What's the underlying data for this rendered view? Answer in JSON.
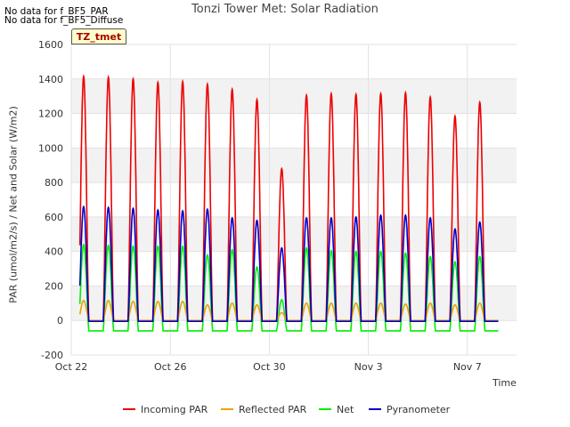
{
  "notes": [
    "No data for f_BF5_PAR",
    "No data for f_BF5_Diffuse"
  ],
  "badge": "TZ_tmet",
  "chart_data": {
    "type": "line",
    "title": "Tonzi Tower Met: Solar Radiation",
    "xlabel": "Time",
    "ylabel": "PAR (umol/m2/s) / Net and Solar (W/m2)",
    "ylim": [
      -200,
      1600
    ],
    "yticks": [
      -200,
      0,
      200,
      400,
      600,
      800,
      1000,
      1200,
      1400,
      1600
    ],
    "xlim": [
      0,
      17.5
    ],
    "xticks": [
      {
        "day": 0,
        "label": "Oct 22"
      },
      {
        "day": 4,
        "label": "Oct 26"
      },
      {
        "day": 8,
        "label": "Oct 30"
      },
      {
        "day": 12,
        "label": "Nov 3"
      },
      {
        "day": 16,
        "label": "Nov 7"
      }
    ],
    "grid": true,
    "legend_position": "bottom",
    "days": [
      {
        "day": 0,
        "par": 1415,
        "refl": 115,
        "net": 440,
        "pyr": 660
      },
      {
        "day": 1,
        "par": 1410,
        "refl": 115,
        "net": 435,
        "pyr": 655
      },
      {
        "day": 2,
        "par": 1400,
        "refl": 110,
        "net": 430,
        "pyr": 650
      },
      {
        "day": 3,
        "par": 1380,
        "refl": 110,
        "net": 430,
        "pyr": 640
      },
      {
        "day": 4,
        "par": 1385,
        "refl": 110,
        "net": 430,
        "pyr": 635
      },
      {
        "day": 5,
        "par": 1370,
        "refl": 90,
        "net": 380,
        "pyr": 645
      },
      {
        "day": 6,
        "par": 1340,
        "refl": 100,
        "net": 410,
        "pyr": 595
      },
      {
        "day": 7,
        "par": 1280,
        "refl": 90,
        "net": 310,
        "pyr": 580
      },
      {
        "day": 8,
        "par": 880,
        "refl": 45,
        "net": 120,
        "pyr": 420
      },
      {
        "day": 9,
        "par": 1305,
        "refl": 100,
        "net": 420,
        "pyr": 595
      },
      {
        "day": 10,
        "par": 1315,
        "refl": 100,
        "net": 405,
        "pyr": 595
      },
      {
        "day": 11,
        "par": 1310,
        "refl": 100,
        "net": 400,
        "pyr": 600
      },
      {
        "day": 12,
        "par": 1315,
        "refl": 100,
        "net": 400,
        "pyr": 610
      },
      {
        "day": 13,
        "par": 1320,
        "refl": 95,
        "net": 390,
        "pyr": 610
      },
      {
        "day": 14,
        "par": 1295,
        "refl": 100,
        "net": 370,
        "pyr": 595
      },
      {
        "day": 15,
        "par": 1185,
        "refl": 90,
        "net": 340,
        "pyr": 530
      },
      {
        "day": 16,
        "par": 1265,
        "refl": 100,
        "net": 370,
        "pyr": 570
      }
    ],
    "night": {
      "par": -5,
      "refl": 0,
      "net": -60,
      "pyr": -5
    },
    "series": [
      {
        "name": "Incoming PAR",
        "key": "par",
        "color": "#ee0000"
      },
      {
        "name": "Reflected PAR",
        "key": "refl",
        "color": "#f0a000"
      },
      {
        "name": "Net",
        "key": "net",
        "color": "#00ee00"
      },
      {
        "name": "Pyranometer",
        "key": "pyr",
        "color": "#0000cc"
      }
    ]
  }
}
